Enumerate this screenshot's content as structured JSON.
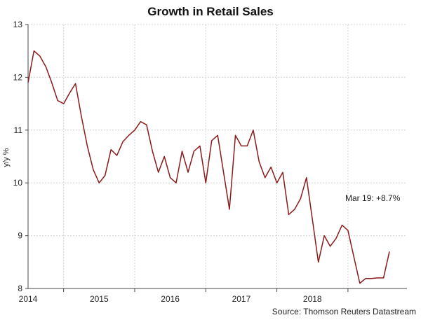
{
  "chart_data": {
    "type": "line",
    "title": "Growth in Retail Sales",
    "ylabel": "y/y %",
    "ylim": [
      8,
      13
    ],
    "y_ticks": [
      8,
      9,
      10,
      11,
      12,
      13
    ],
    "x_range": [
      2013.5,
      2018.83
    ],
    "x_tick_labels": [
      "2014",
      "2015",
      "2016",
      "2017",
      "2018"
    ],
    "grid": true,
    "series": [
      {
        "color": "#8b1a1a",
        "points": [
          [
            2013.5,
            11.9
          ],
          [
            2013.583,
            12.5
          ],
          [
            2013.667,
            12.4
          ],
          [
            2013.75,
            12.2
          ],
          [
            2013.833,
            11.9
          ],
          [
            2013.917,
            11.56
          ],
          [
            2014.0,
            11.5
          ],
          [
            2014.083,
            11.7
          ],
          [
            2014.167,
            11.88
          ],
          [
            2014.25,
            11.26
          ],
          [
            2014.333,
            10.7
          ],
          [
            2014.417,
            10.25
          ],
          [
            2014.5,
            10.0
          ],
          [
            2014.583,
            10.14
          ],
          [
            2014.667,
            10.63
          ],
          [
            2014.75,
            10.52
          ],
          [
            2014.833,
            10.78
          ],
          [
            2014.917,
            10.9
          ],
          [
            2015.0,
            11.0
          ],
          [
            2015.083,
            11.16
          ],
          [
            2015.167,
            11.1
          ],
          [
            2015.25,
            10.6
          ],
          [
            2015.333,
            10.2
          ],
          [
            2015.417,
            10.5
          ],
          [
            2015.5,
            10.1
          ],
          [
            2015.583,
            10.0
          ],
          [
            2015.667,
            10.6
          ],
          [
            2015.75,
            10.2
          ],
          [
            2015.833,
            10.6
          ],
          [
            2015.917,
            10.7
          ],
          [
            2016.0,
            10.0
          ],
          [
            2016.083,
            10.8
          ],
          [
            2016.167,
            10.9
          ],
          [
            2016.25,
            10.2
          ],
          [
            2016.333,
            9.5
          ],
          [
            2016.417,
            10.9
          ],
          [
            2016.5,
            10.7
          ],
          [
            2016.583,
            10.7
          ],
          [
            2016.667,
            11.0
          ],
          [
            2016.75,
            10.4
          ],
          [
            2016.833,
            10.1
          ],
          [
            2016.917,
            10.3
          ],
          [
            2017.0,
            10.0
          ],
          [
            2017.083,
            10.2
          ],
          [
            2017.167,
            9.4
          ],
          [
            2017.25,
            9.5
          ],
          [
            2017.333,
            9.7
          ],
          [
            2017.417,
            10.1
          ],
          [
            2017.5,
            9.3
          ],
          [
            2017.583,
            8.5
          ],
          [
            2017.667,
            9.0
          ],
          [
            2017.75,
            8.8
          ],
          [
            2017.833,
            8.95
          ],
          [
            2017.917,
            9.2
          ],
          [
            2018.0,
            9.1
          ],
          [
            2018.083,
            8.6
          ],
          [
            2018.167,
            8.1
          ],
          [
            2018.25,
            8.19
          ],
          [
            2018.333,
            8.19
          ],
          [
            2018.417,
            8.2
          ],
          [
            2018.5,
            8.2
          ],
          [
            2018.583,
            8.7
          ]
        ]
      }
    ],
    "annotation": "Mar 19: +8.7%",
    "source": "Source: Thomson Reuters Datastream"
  }
}
